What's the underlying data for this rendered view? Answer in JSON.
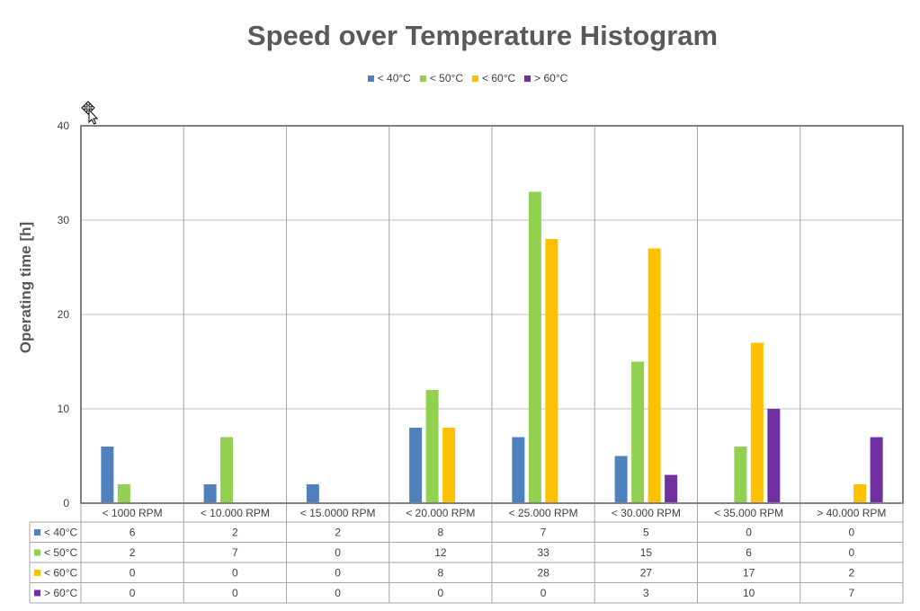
{
  "chart_data": {
    "type": "bar",
    "title": "Speed over Temperature Histogram",
    "xlabel": "",
    "ylabel": "Operating time [h]",
    "ylim": [
      0,
      40
    ],
    "yticks": [
      0,
      10,
      20,
      30,
      40
    ],
    "grid": true,
    "legend_position": "top",
    "data_table": true,
    "categories": [
      "< 1000 RPM",
      "< 10.000 RPM",
      "< 15.0000 RPM",
      "< 20.000 RPM",
      "< 25.000 RPM",
      "< 30.000 RPM",
      "< 35.000 RPM",
      "> 40.000 RPM"
    ],
    "series": [
      {
        "name": "< 40°C",
        "color": "#4F81BD",
        "values": [
          6,
          2,
          2,
          8,
          7,
          5,
          0,
          0
        ]
      },
      {
        "name": "< 50°C",
        "color": "#92D050",
        "values": [
          2,
          7,
          0,
          12,
          33,
          15,
          6,
          0
        ]
      },
      {
        "name": "< 60°C",
        "color": "#FFC000",
        "values": [
          0,
          0,
          0,
          8,
          28,
          27,
          17,
          2
        ]
      },
      {
        "name": "> 60°C",
        "color": "#7030A0",
        "values": [
          0,
          0,
          0,
          0,
          0,
          3,
          10,
          7
        ]
      }
    ]
  },
  "cursor": {
    "icon": "move-cursor-icon"
  }
}
